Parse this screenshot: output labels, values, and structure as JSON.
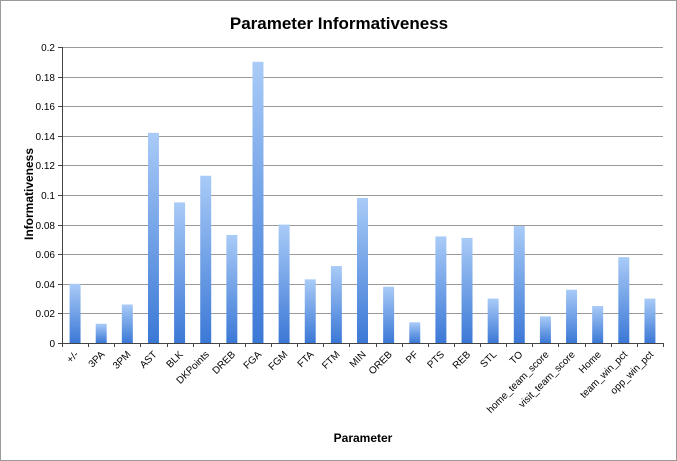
{
  "chart_data": {
    "type": "bar",
    "title": "Parameter Informativeness",
    "xlabel": "Parameter",
    "ylabel": "Informativeness",
    "ylim": [
      0,
      0.2
    ],
    "yticks": [
      0,
      0.02,
      0.04,
      0.06,
      0.08,
      0.1,
      0.12,
      0.14,
      0.16,
      0.18,
      0.2
    ],
    "ytick_labels": [
      "0",
      "0.02",
      "0.04",
      "0.06",
      "0.08",
      "0.1",
      "0.12",
      "0.14",
      "0.16",
      "0.18",
      "0.2"
    ],
    "grid": true,
    "legend": false,
    "categories": [
      "+/-",
      "3PA",
      "3PM",
      "AST",
      "BLK",
      "DKPoints",
      "DREB",
      "FGA",
      "FGM",
      "FTA",
      "FTM",
      "MIN",
      "OREB",
      "PF",
      "PTS",
      "REB",
      "STL",
      "TO",
      "home_team_score",
      "visit_team_score",
      "Home",
      "team_win_pct",
      "opp_win_pct"
    ],
    "values": [
      0.04,
      0.013,
      0.026,
      0.142,
      0.095,
      0.113,
      0.073,
      0.19,
      0.08,
      0.043,
      0.052,
      0.098,
      0.038,
      0.014,
      0.072,
      0.071,
      0.03,
      0.079,
      0.018,
      0.036,
      0.025,
      0.058,
      0.03
    ],
    "colors": {
      "bar_top": "#a9cbf7",
      "bar_bottom": "#3b78d6",
      "grid": "#9a9a9a"
    }
  }
}
